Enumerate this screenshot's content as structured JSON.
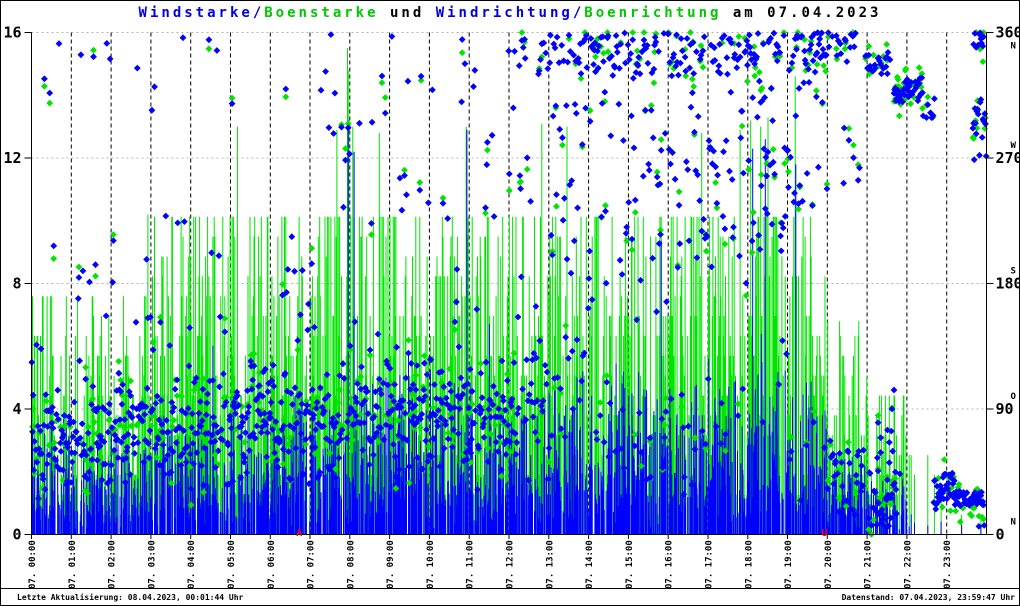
{
  "title": {
    "parts": [
      {
        "text": "Windstarke/",
        "color": "#0000e0"
      },
      {
        "text": "Boenstarke",
        "color": "#00c800"
      },
      {
        "text": " und ",
        "color": "#000000"
      },
      {
        "text": "Windrichtung/",
        "color": "#0000e0"
      },
      {
        "text": "Boenrichtung",
        "color": "#00c800"
      },
      {
        "text": " am 07.04.2023",
        "color": "#000000"
      }
    ]
  },
  "footer": {
    "last_update": "Letzte Aktualisierung: 08.04.2023, 00:01:44 Uhr",
    "data_state": "Datenstand: 07.04.2023, 23:59:47 Uhr"
  },
  "chart_data": {
    "type": "scatter",
    "title": "Windstarke/Boenstarke und Windrichtung/Boenrichtung am 07.04.2023",
    "legend_position": "none",
    "grid": {
      "vertical_color": "#000000",
      "vertical_style": "dashed",
      "horizontal_color": "#b4b4b4",
      "horizontal_style": "dashed"
    },
    "series": [
      {
        "name": "Windstarke",
        "style": "impulses",
        "color": "#0000ff",
        "axis": "left"
      },
      {
        "name": "Boenstarke",
        "style": "impulses",
        "color": "#00e400",
        "axis": "left"
      },
      {
        "name": "Windrichtung",
        "style": "points-diamond",
        "color": "#0000ff",
        "axis": "right"
      },
      {
        "name": "Boenrichtung",
        "style": "points-diamond",
        "color": "#00e400",
        "axis": "right"
      }
    ],
    "x_axis": {
      "hours": 24,
      "labels": [
        "07. 00:00",
        "07. 01:00",
        "07. 02:00",
        "07. 03:00",
        "07. 04:00",
        "07. 05:00",
        "07. 06:00",
        "07. 07:00",
        "07. 08:00",
        "07. 09:00",
        "07. 10:00",
        "07. 11:00",
        "07. 12:00",
        "07. 13:00",
        "07. 14:00",
        "07. 15:00",
        "07. 16:00",
        "07. 17:00",
        "07. 18:00",
        "07. 19:00",
        "07. 20:00",
        "07. 21:00",
        "07. 22:00",
        "07. 23:00"
      ]
    },
    "y_left": {
      "min": 0,
      "max": 16,
      "ticks": [
        0,
        4,
        8,
        12,
        16
      ]
    },
    "y_right": {
      "min": 0,
      "max": 360,
      "ticks": [
        0,
        90,
        180,
        270,
        360
      ],
      "compass": [
        {
          "value": 360,
          "letter": "N"
        },
        {
          "value": 270,
          "letter": "W"
        },
        {
          "value": 180,
          "letter": "S"
        },
        {
          "value": 90,
          "letter": "O"
        },
        {
          "value": 0,
          "letter": "N"
        }
      ]
    },
    "sun_markers": [
      {
        "letter": "A",
        "hour": 6.73,
        "color": "#ff0000"
      },
      {
        "letter": "U",
        "hour": 19.93,
        "color": "#ff0000"
      }
    ],
    "hourly_profile": [
      {
        "hour": 0,
        "wind_max": 3.4,
        "gust_max": 7.6,
        "bar_density": 0.8,
        "gust_spread": 2.1,
        "point_density": 0.95,
        "dir_bands": [
          [
            25,
            115,
            0.92
          ],
          [
            120,
            210,
            0.06
          ],
          [
            300,
            360,
            0.02
          ]
        ]
      },
      {
        "hour": 1,
        "wind_max": 3.4,
        "gust_max": 7.6,
        "bar_density": 0.8,
        "gust_spread": 2.1,
        "point_density": 0.95,
        "dir_bands": [
          [
            25,
            115,
            0.9
          ],
          [
            120,
            210,
            0.07
          ],
          [
            330,
            360,
            0.03
          ]
        ]
      },
      {
        "hour": 2,
        "wind_max": 3.6,
        "gust_max": 7.6,
        "bar_density": 0.8,
        "gust_spread": 2.1,
        "point_density": 0.95,
        "dir_bands": [
          [
            30,
            120,
            0.92
          ],
          [
            120,
            220,
            0.06
          ],
          [
            300,
            360,
            0.02
          ]
        ]
      },
      {
        "hour": 3,
        "wind_max": 4.2,
        "gust_max": 10.2,
        "bar_density": 0.82,
        "gust_spread": 1.9,
        "point_density": 0.95,
        "dir_bands": [
          [
            30,
            125,
            0.88
          ],
          [
            130,
            230,
            0.08
          ],
          [
            300,
            360,
            0.04
          ]
        ]
      },
      {
        "hour": 4,
        "wind_max": 4.2,
        "gust_max": 10.2,
        "bar_density": 0.82,
        "gust_spread": 1.9,
        "point_density": 0.95,
        "dir_bands": [
          [
            30,
            125,
            0.88
          ],
          [
            130,
            260,
            0.08
          ],
          [
            300,
            360,
            0.04
          ]
        ]
      },
      {
        "hour": 5,
        "wind_max": 4.4,
        "gust_max": 10.2,
        "bar_density": 0.82,
        "gust_spread": 1.9,
        "point_density": 0.95,
        "dir_bands": [
          [
            30,
            130,
            0.88
          ],
          [
            130,
            260,
            0.08
          ],
          [
            300,
            360,
            0.04
          ]
        ]
      },
      {
        "hour": 6,
        "wind_max": 4.4,
        "gust_max": 10.2,
        "bar_density": 0.85,
        "gust_spread": 1.9,
        "point_density": 0.95,
        "dir_bands": [
          [
            30,
            130,
            0.86
          ],
          [
            130,
            260,
            0.09
          ],
          [
            300,
            360,
            0.05
          ]
        ]
      },
      {
        "hour": 7,
        "wind_max": 4.8,
        "gust_max": 10.2,
        "bar_density": 0.85,
        "gust_spread": 1.4,
        "point_density": 0.95,
        "dir_bands": [
          [
            30,
            130,
            0.8
          ],
          [
            130,
            280,
            0.12
          ],
          [
            280,
            360,
            0.08
          ]
        ]
      },
      {
        "hour": 8,
        "wind_max": 5.0,
        "gust_max": 10.2,
        "bar_density": 0.85,
        "gust_spread": 2.0,
        "point_density": 0.95,
        "dir_bands": [
          [
            30,
            135,
            0.82
          ],
          [
            135,
            280,
            0.12
          ],
          [
            280,
            360,
            0.06
          ]
        ]
      },
      {
        "hour": 9,
        "wind_max": 5.0,
        "gust_max": 10.2,
        "bar_density": 0.85,
        "gust_spread": 2.0,
        "point_density": 0.95,
        "dir_bands": [
          [
            35,
            140,
            0.85
          ],
          [
            140,
            280,
            0.1
          ],
          [
            300,
            360,
            0.05
          ]
        ]
      },
      {
        "hour": 10,
        "wind_max": 5.0,
        "gust_max": 10.2,
        "bar_density": 0.85,
        "gust_spread": 2.0,
        "point_density": 0.95,
        "dir_bands": [
          [
            35,
            140,
            0.82
          ],
          [
            140,
            300,
            0.12
          ],
          [
            300,
            360,
            0.06
          ]
        ]
      },
      {
        "hour": 11,
        "wind_max": 5.0,
        "gust_max": 10.2,
        "bar_density": 0.85,
        "gust_spread": 2.0,
        "point_density": 0.95,
        "dir_bands": [
          [
            30,
            150,
            0.8
          ],
          [
            150,
            310,
            0.12
          ],
          [
            310,
            360,
            0.08
          ]
        ]
      },
      {
        "hour": 12,
        "wind_max": 5.0,
        "gust_max": 10.2,
        "bar_density": 0.85,
        "gust_spread": 2.0,
        "point_density": 0.95,
        "dir_bands": [
          [
            30,
            150,
            0.62
          ],
          [
            150,
            330,
            0.16
          ],
          [
            330,
            360,
            0.22
          ]
        ]
      },
      {
        "hour": 13,
        "wind_max": 5.2,
        "gust_max": 10.2,
        "bar_density": 0.85,
        "gust_spread": 1.8,
        "point_density": 0.95,
        "dir_bands": [
          [
            30,
            150,
            0.34
          ],
          [
            150,
            330,
            0.26
          ],
          [
            330,
            360,
            0.4
          ]
        ]
      },
      {
        "hour": 14,
        "wind_max": 5.2,
        "gust_max": 10.2,
        "bar_density": 0.85,
        "gust_spread": 2.0,
        "point_density": 0.95,
        "dir_bands": [
          [
            20,
            120,
            0.24
          ],
          [
            150,
            330,
            0.3
          ],
          [
            330,
            360,
            0.46
          ]
        ]
      },
      {
        "hour": 15,
        "wind_max": 5.2,
        "gust_max": 10.2,
        "bar_density": 0.85,
        "gust_spread": 2.0,
        "point_density": 0.95,
        "dir_bands": [
          [
            20,
            120,
            0.2
          ],
          [
            150,
            330,
            0.34
          ],
          [
            330,
            360,
            0.46
          ]
        ]
      },
      {
        "hour": 16,
        "wind_max": 5.2,
        "gust_max": 10.2,
        "bar_density": 0.85,
        "gust_spread": 2.0,
        "point_density": 0.95,
        "dir_bands": [
          [
            20,
            120,
            0.2
          ],
          [
            160,
            330,
            0.34
          ],
          [
            330,
            360,
            0.46
          ]
        ]
      },
      {
        "hour": 17,
        "wind_max": 5.6,
        "gust_max": 10.2,
        "bar_density": 0.85,
        "gust_spread": 1.7,
        "point_density": 0.95,
        "dir_bands": [
          [
            40,
            120,
            0.1
          ],
          [
            180,
            330,
            0.4
          ],
          [
            330,
            360,
            0.5
          ]
        ]
      },
      {
        "hour": 18,
        "wind_max": 6.4,
        "gust_max": 10.2,
        "bar_density": 0.85,
        "gust_spread": 1.4,
        "point_density": 0.95,
        "dir_bands": [
          [
            60,
            150,
            0.08
          ],
          [
            200,
            335,
            0.42
          ],
          [
            335,
            360,
            0.5
          ]
        ]
      },
      {
        "hour": 19,
        "wind_max": 5.8,
        "gust_max": 10.2,
        "bar_density": 0.85,
        "gust_spread": 1.6,
        "point_density": 0.95,
        "dir_bands": [
          [
            20,
            100,
            0.1
          ],
          [
            230,
            335,
            0.4
          ],
          [
            335,
            360,
            0.5
          ]
        ]
      },
      {
        "hour": 20,
        "wind_max": 2.8,
        "gust_max": 6.8,
        "bar_density": 0.8,
        "gust_spread": 2.1,
        "point_density": 0.9,
        "dir_bands": [
          [
            5,
            90,
            0.55
          ],
          [
            250,
            340,
            0.2
          ],
          [
            340,
            360,
            0.25
          ]
        ]
      },
      {
        "hour": 21,
        "wind_max": 2.2,
        "gust_max": 4.6,
        "bar_density": 0.62,
        "gust_spread": 2.1,
        "point_density": 0.85,
        "dir_bands": [
          [
            5,
            60,
            0.6
          ],
          [
            315,
            335,
            0.35
          ],
          [
            335,
            360,
            0.05
          ]
        ]
      },
      {
        "hour": 22,
        "wind_max": 0.8,
        "gust_max": 2.8,
        "bar_density": 0.18,
        "gust_spread": 2.1,
        "point_density": 0.5,
        "dir_bands": [
          [
            20,
            45,
            0.55
          ],
          [
            295,
            345,
            0.4
          ],
          [
            350,
            360,
            0.05
          ]
        ]
      },
      {
        "hour": 23,
        "wind_max": 0.4,
        "gust_max": 0.8,
        "bar_density": 0.04,
        "gust_spread": 2.1,
        "point_density": 0.6,
        "dir_bands": [
          [
            10,
            40,
            0.8
          ],
          [
            270,
            310,
            0.12
          ],
          [
            345,
            360,
            0.08
          ]
        ]
      }
    ],
    "peak_events": [
      [
        2,
        55,
        10.2,
        "gust"
      ],
      [
        5,
        10,
        13.0,
        "gust"
      ],
      [
        7,
        40,
        12.9,
        "gust"
      ],
      [
        7,
        56,
        15.5,
        "gust"
      ],
      [
        7,
        57,
        13.2,
        "wind"
      ],
      [
        7,
        58,
        14.8,
        "gust"
      ],
      [
        8,
        4,
        13.0,
        "gust"
      ],
      [
        8,
        6,
        12.2,
        "wind"
      ],
      [
        8,
        44,
        12.8,
        "gust"
      ],
      [
        10,
        55,
        13.0,
        "gust"
      ],
      [
        10,
        56,
        12.9,
        "wind"
      ],
      [
        12,
        49,
        13.1,
        "gust"
      ],
      [
        13,
        27,
        13.0,
        "gust"
      ],
      [
        16,
        50,
        12.8,
        "gust"
      ],
      [
        17,
        48,
        12.9,
        "gust"
      ],
      [
        18,
        4,
        13.2,
        "gust"
      ],
      [
        18,
        7,
        12.3,
        "wind"
      ],
      [
        18,
        19,
        13.0,
        "gust"
      ],
      [
        18,
        26,
        12.6,
        "wind"
      ],
      [
        18,
        30,
        13.3,
        "gust"
      ],
      [
        19,
        11,
        14.6,
        "gust"
      ],
      [
        19,
        12,
        11.8,
        "wind"
      ]
    ],
    "late_direction_segments": [
      [
        1255,
        1300,
        330,
        346,
        0.55
      ],
      [
        1262,
        1310,
        6,
        60,
        0.85
      ],
      [
        1270,
        1302,
        60,
        105,
        0.35
      ],
      [
        1300,
        1344,
        310,
        330,
        0.95
      ],
      [
        1344,
        1362,
        294,
        314,
        0.5
      ],
      [
        1360,
        1392,
        16,
        46,
        0.95
      ],
      [
        1390,
        1436,
        20,
        31,
        1.0
      ],
      [
        1419,
        1440,
        268,
        312,
        0.85
      ],
      [
        1420,
        1436,
        347,
        360,
        0.55
      ],
      [
        1428,
        1440,
        2,
        14,
        0.35
      ]
    ]
  }
}
